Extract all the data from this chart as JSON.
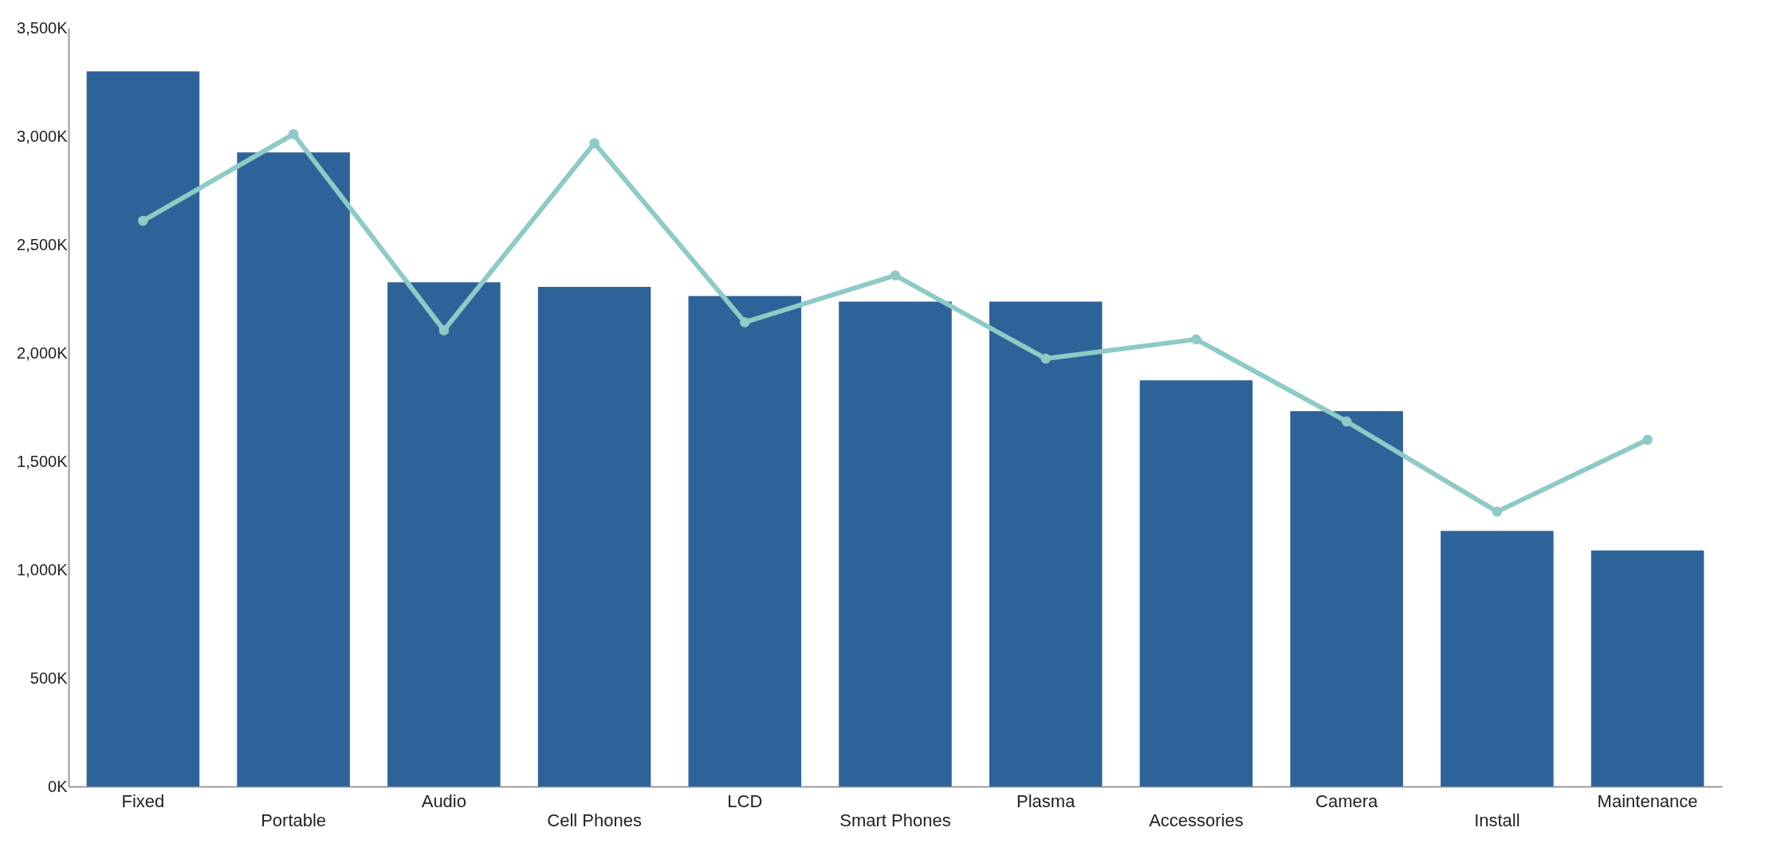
{
  "chart_data": {
    "type": "bar",
    "categories": [
      "Fixed",
      "Portable",
      "Audio",
      "Cell Phones",
      "LCD",
      "Smart Phones",
      "Plasma",
      "Accessories",
      "Camera",
      "Install",
      "Maintenance"
    ],
    "series": [
      {
        "color": "#2e6399",
        "values": [
          3300,
          2926,
          2326,
          2305,
          2263,
          2237,
          2237,
          1874,
          1732,
          1179,
          1089
        ]
      },
      {
        "type": "line",
        "color": "#8ecac6",
        "marker": "circle",
        "values": [
          2610,
          3010,
          2105,
          2968,
          2142,
          2358,
          1974,
          2063,
          1684,
          1268,
          1600
        ]
      }
    ],
    "ylim": [
      0,
      3500
    ],
    "yticks": [
      {
        "value": 0,
        "label": "0K"
      },
      {
        "value": 500,
        "label": "500K"
      },
      {
        "value": 1000,
        "label": "1,000K"
      },
      {
        "value": 1500,
        "label": "1,500K"
      },
      {
        "value": 2000,
        "label": "2,000K"
      },
      {
        "value": 2500,
        "label": "2,500K"
      },
      {
        "value": 3000,
        "label": "3,000K"
      },
      {
        "value": 3500,
        "label": "3,500K"
      }
    ],
    "grid": false
  }
}
